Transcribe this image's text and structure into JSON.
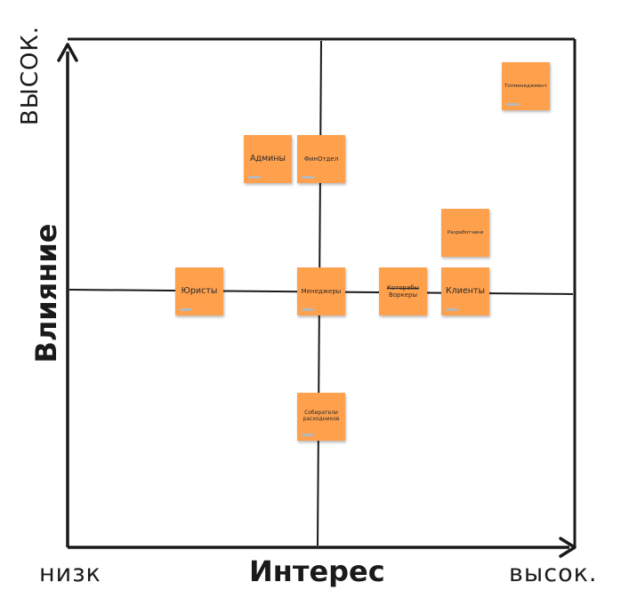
{
  "axes": {
    "y_title": "Влияние",
    "y_high": "ВЫСОК.",
    "x_title": "Интерес",
    "x_low": "низк",
    "x_high": "высок."
  },
  "colors": {
    "sticky_note": "#ffa04d",
    "axis_line": "#1a1a1a"
  },
  "stickies": {
    "topmanagement": "Топменеджмент",
    "admins": "Админы",
    "fin": "ФинОтдел",
    "devs": "Разработчики",
    "lawyers": "Юристы",
    "managers": "Менеджеры",
    "workers_struck": "Которабы",
    "workers": "Воркеры",
    "clients": "Клиенты",
    "collectors": "Собиратели расходников"
  }
}
